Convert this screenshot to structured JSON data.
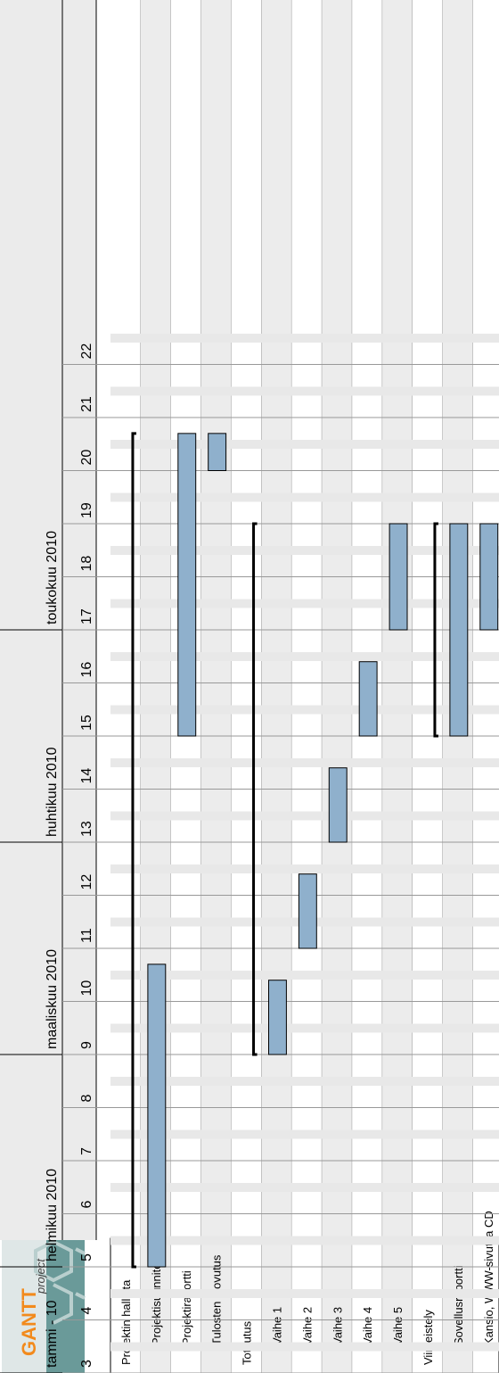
{
  "logo": {
    "text": "GANTT",
    "subtext": "project",
    "colors": [
      "#f28a1c",
      "#6a9a99"
    ]
  },
  "months": [
    {
      "label": "tammi - 10",
      "start_week": 3,
      "end_week": 5
    },
    {
      "label": "helmikuu 2010",
      "start_week": 5,
      "end_week": 9
    },
    {
      "label": "maaliskuu 2010",
      "start_week": 9,
      "end_week": 13
    },
    {
      "label": "huhtikuu 2010",
      "start_week": 13,
      "end_week": 17
    },
    {
      "label": "toukokuu 2010",
      "start_week": 17,
      "end_week": 22
    }
  ],
  "weeks": [
    "3",
    "4",
    "5",
    "6",
    "7",
    "8",
    "9",
    "10",
    "11",
    "12",
    "13",
    "14",
    "15",
    "16",
    "17",
    "18",
    "19",
    "20",
    "21",
    "22"
  ],
  "task_table": {
    "colors": {
      "row_even": "#ffffff",
      "row_odd": "#ececec",
      "grid": "#999999",
      "border": "#000000"
    }
  },
  "chart_data": {
    "type": "gantt",
    "x_unit": "week (2010)",
    "x_range": [
      3,
      22.6
    ],
    "bar_color": "#8fb0cc",
    "summary_color": "#000000",
    "tasks": [
      {
        "name": "Projektin hallinta",
        "indent": 0,
        "type": "summary",
        "start": 5,
        "end": 20.7
      },
      {
        "name": "Projektisuunnitelma",
        "indent": 1,
        "type": "task",
        "start": 5,
        "end": 10.7
      },
      {
        "name": "Projektiraportti",
        "indent": 1,
        "type": "task",
        "start": 15,
        "end": 20.7
      },
      {
        "name": "Tulosten luovutus",
        "indent": 1,
        "type": "task",
        "start": 20,
        "end": 20.7
      },
      {
        "name": "Toteutus",
        "indent": 0,
        "type": "summary",
        "start": 9,
        "end": 19
      },
      {
        "name": "Vaihe 1",
        "indent": 1,
        "type": "task",
        "start": 9,
        "end": 10.4
      },
      {
        "name": "Vaihe 2",
        "indent": 1,
        "type": "task",
        "start": 11,
        "end": 12.4
      },
      {
        "name": "Vaihe 3",
        "indent": 1,
        "type": "task",
        "start": 13,
        "end": 14.4
      },
      {
        "name": "Vaihe 4",
        "indent": 1,
        "type": "task",
        "start": 15,
        "end": 16.4
      },
      {
        "name": "Vaihe 5",
        "indent": 1,
        "type": "task",
        "start": 17,
        "end": 19
      },
      {
        "name": "Viimeistely",
        "indent": 0,
        "type": "summary",
        "start": 15,
        "end": 19
      },
      {
        "name": "Sovellusraportti",
        "indent": 1,
        "type": "task",
        "start": 15,
        "end": 19
      },
      {
        "name": "Kansio, WWW-sivut ja CD",
        "indent": 1,
        "type": "task",
        "start": 17,
        "end": 19
      }
    ]
  }
}
